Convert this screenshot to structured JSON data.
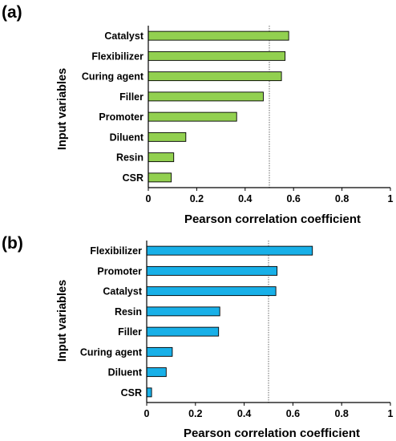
{
  "chart_data": [
    {
      "type": "bar",
      "orientation": "horizontal",
      "panel_label": "(a)",
      "categories": [
        "Catalyst",
        "Flexibilizer",
        "Curing agent",
        "Filler",
        "Promoter",
        "Diluent",
        "Resin",
        "CSR"
      ],
      "values": [
        0.58,
        0.565,
        0.55,
        0.475,
        0.365,
        0.155,
        0.105,
        0.095
      ],
      "xlabel": "Pearson correlation coefficient",
      "ylabel": "Input variables",
      "xlim": [
        0,
        1
      ],
      "xticks": [
        "0",
        "0.2",
        "0.4",
        "0.6",
        "0.8",
        "1"
      ],
      "reference_line_x": 0.5,
      "bar_color": "#92d050",
      "grid": false
    },
    {
      "type": "bar",
      "orientation": "horizontal",
      "panel_label": "(b)",
      "categories": [
        "Flexibilizer",
        "Promoter",
        "Catalyst",
        "Resin",
        "Filler",
        "Curing agent",
        "Diluent",
        "CSR"
      ],
      "values": [
        0.68,
        0.535,
        0.53,
        0.3,
        0.295,
        0.105,
        0.08,
        0.02
      ],
      "xlabel": "Pearson correlation coefficient",
      "ylabel": "Input variables",
      "xlim": [
        0,
        1
      ],
      "xticks": [
        "0",
        "0.2",
        "0.4",
        "0.6",
        "0.8",
        "1"
      ],
      "reference_line_x": 0.5,
      "bar_color": "#18b0e8",
      "grid": false
    }
  ]
}
